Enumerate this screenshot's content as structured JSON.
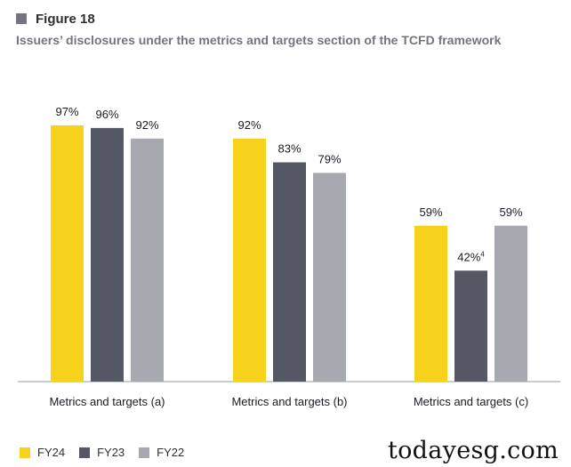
{
  "figure": {
    "label": "Figure 18",
    "title": "Issuers’ disclosures under the metrics and targets section of the TCFD framework",
    "square_color": "#747480"
  },
  "chart_data": {
    "type": "bar",
    "categories": [
      "Metrics and targets (a)",
      "Metrics and targets (b)",
      "Metrics and targets (c)"
    ],
    "series": [
      {
        "name": "FY24",
        "color": "#f6d21a",
        "values": [
          97,
          92,
          59
        ],
        "labels": [
          "97%",
          "92%",
          "59%"
        ]
      },
      {
        "name": "FY23",
        "color": "#545864",
        "values": [
          96,
          83,
          42
        ],
        "labels": [
          "96%",
          "83%",
          "42%"
        ]
      },
      {
        "name": "FY22",
        "color": "#a7a9b0",
        "values": [
          92,
          79,
          59
        ],
        "labels": [
          "92%",
          "79%",
          "59%"
        ]
      }
    ],
    "annotations": [
      {
        "category": "Metrics and targets (c)",
        "series": "FY23",
        "superscript": "4"
      }
    ],
    "ylim": [
      0,
      100
    ],
    "grid": false,
    "legend": "bottom-left"
  },
  "watermark": "todayesg.com"
}
